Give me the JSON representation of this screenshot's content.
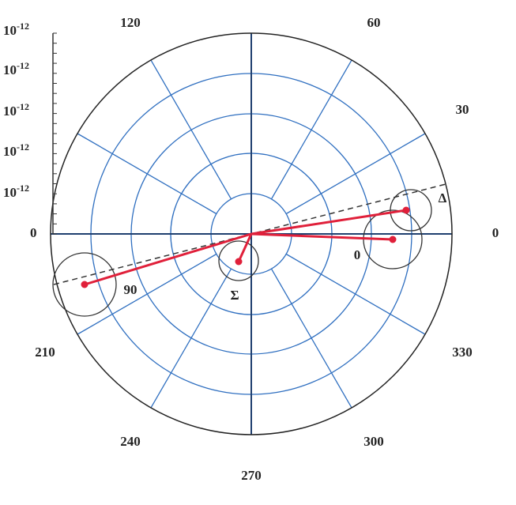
{
  "radial_labels": [
    {
      "base": "10",
      "exponent": "-12"
    },
    {
      "base": "10",
      "exponent": "-12"
    },
    {
      "base": "10",
      "exponent": "-12"
    },
    {
      "base": "10",
      "exponent": "-12"
    },
    {
      "base": "10",
      "exponent": "-12"
    },
    {
      "base": "0"
    }
  ],
  "angle_labels": [
    "0",
    "30",
    "60",
    "120",
    "210",
    "240",
    "270",
    "300",
    "330"
  ],
  "vector_labels": [
    "90",
    "Σ",
    "0",
    "Δ"
  ]
}
